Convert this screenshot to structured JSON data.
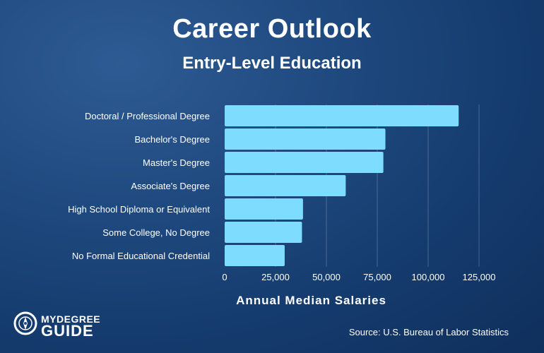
{
  "header": {
    "title": "Career Outlook",
    "subtitle": "Entry-Level Education"
  },
  "chart_data": {
    "type": "bar",
    "orientation": "horizontal",
    "categories": [
      "Doctoral / Professional Degree",
      "Bachelor's Degree",
      "Master's Degree",
      "Associate's Degree",
      "High School Diploma or Equivalent",
      "Some College, No Degree",
      "No Formal Educational Credential"
    ],
    "values": [
      115000,
      79000,
      78000,
      59500,
      38500,
      38000,
      29500
    ],
    "xlabel": "Annual Median Salaries",
    "xlim": [
      0,
      125000
    ],
    "xticks": [
      0,
      25000,
      50000,
      75000,
      100000,
      125000
    ],
    "xtick_labels": [
      "0",
      "25,000",
      "50,000",
      "75,000",
      "100,000",
      "125,000"
    ],
    "grid": "vertical",
    "bar_color": "#7ddcff"
  },
  "branding": {
    "logo_line1": "MYDEGREE",
    "logo_line2": "GUIDE",
    "source": "Source: U.S. Bureau of Labor Statistics"
  }
}
